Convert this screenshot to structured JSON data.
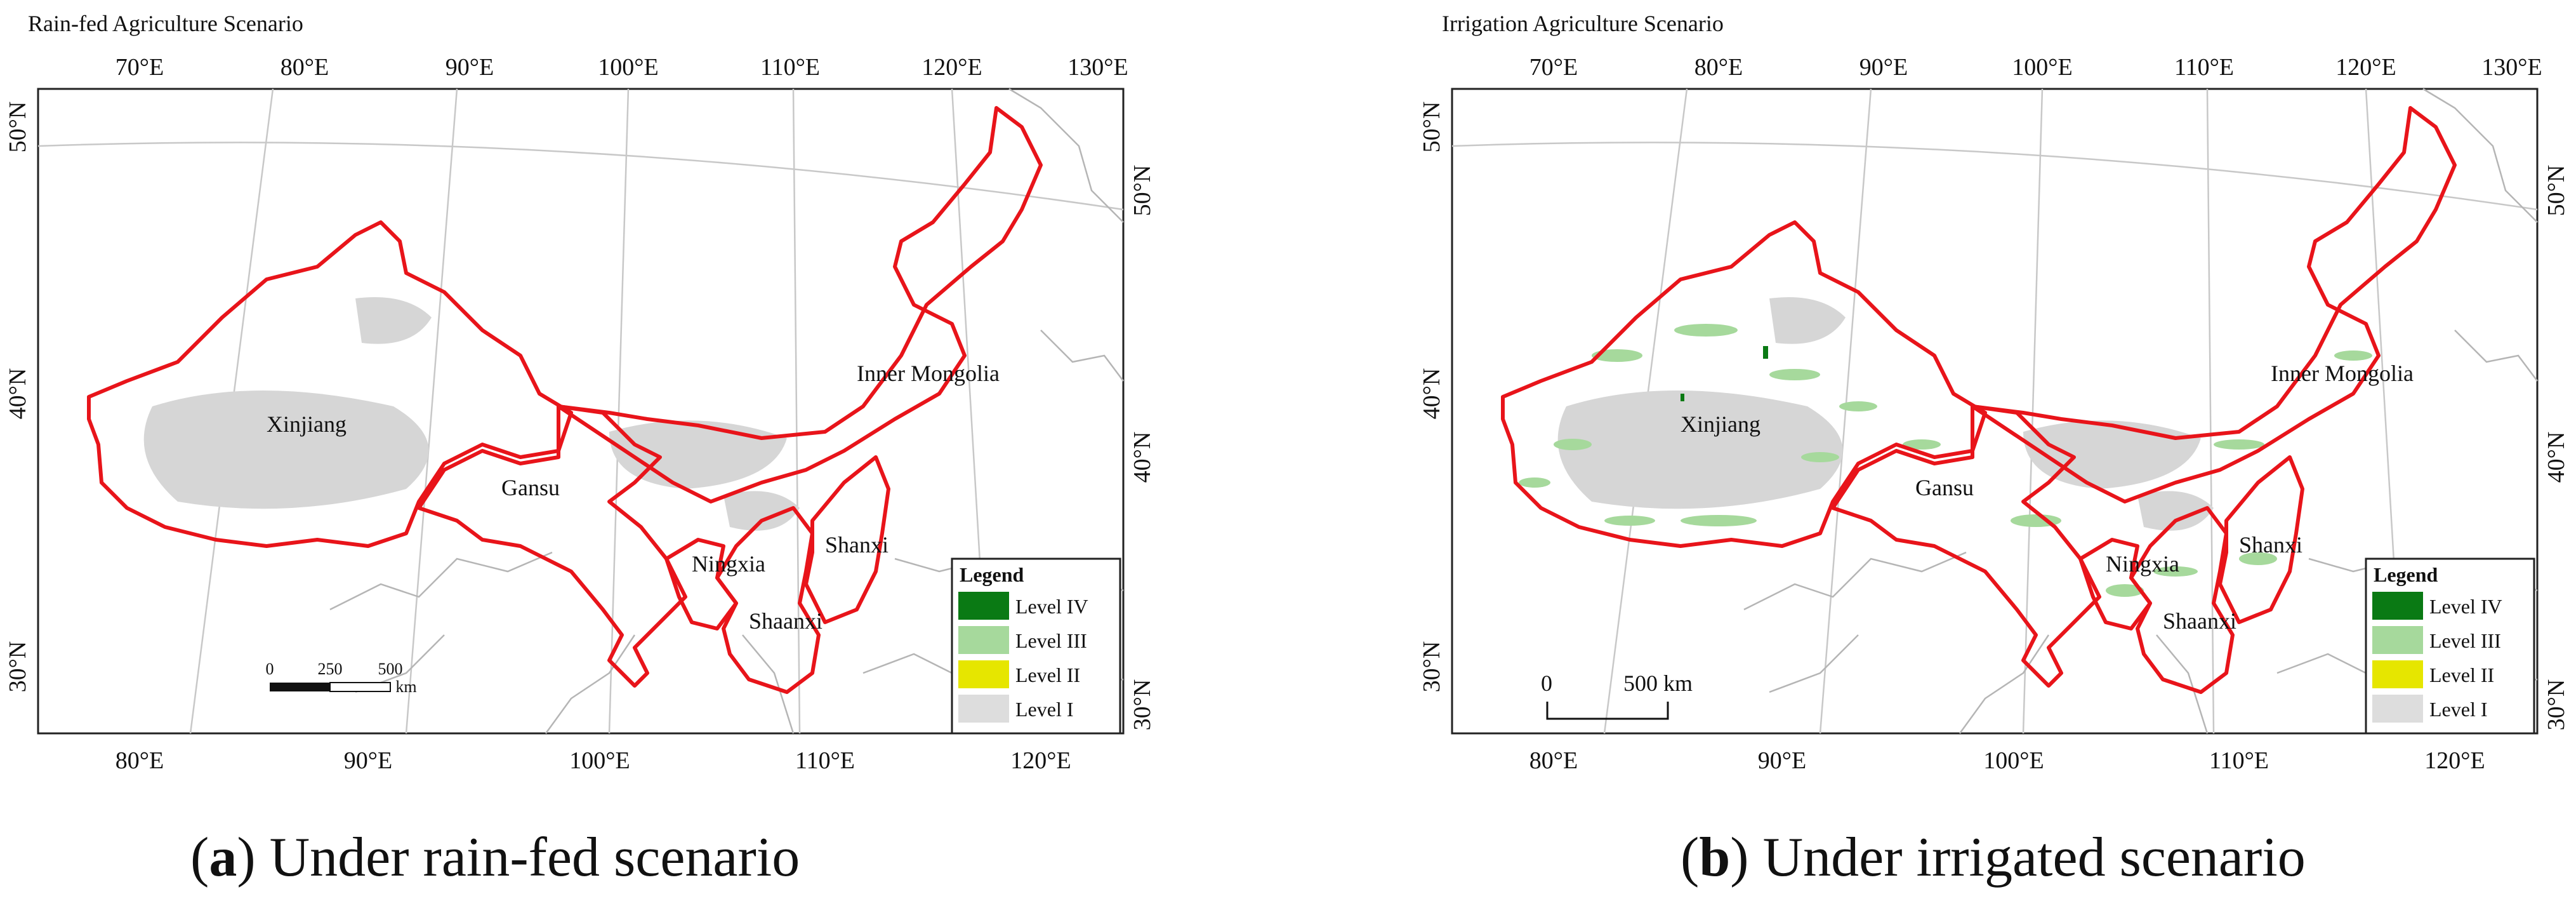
{
  "panels": [
    {
      "title": "Rain-fed Agriculture Scenario",
      "caption_letter": "a",
      "caption_text": "Under rain-fed scenario",
      "top_lon_labels": [
        "70°E",
        "80°E",
        "90°E",
        "100°E",
        "110°E",
        "120°E",
        "130°E"
      ],
      "bottom_lon_labels": [
        "80°E",
        "90°E",
        "100°E",
        "110°E",
        "120°E"
      ],
      "left_lat_labels": [
        "50°N",
        "40°N",
        "30°N"
      ],
      "right_lat_labels": [
        "50°N",
        "40°N",
        "30°N"
      ],
      "regions": [
        "Xinjiang",
        "Gansu",
        "Ningxia",
        "Shaanxi",
        "Shanxi",
        "Inner Mongolia"
      ],
      "legend": {
        "title": "Legend",
        "items": [
          {
            "label": "Level IV",
            "color": "#0a7a14"
          },
          {
            "label": "Level III",
            "color": "#a6d99c"
          },
          {
            "label": "Level II",
            "color": "#e6e600"
          },
          {
            "label": "Level I",
            "color": "#dddddd"
          }
        ]
      },
      "scale_bar": {
        "ticks": [
          "0",
          "250",
          "500"
        ],
        "unit": "km"
      }
    },
    {
      "title": "Irrigation Agriculture Scenario",
      "caption_letter": "b",
      "caption_text": "Under irrigated scenario",
      "top_lon_labels": [
        "70°E",
        "80°E",
        "90°E",
        "100°E",
        "110°E",
        "120°E",
        "130°E"
      ],
      "bottom_lon_labels": [
        "80°E",
        "90°E",
        "100°E",
        "110°E",
        "120°E"
      ],
      "left_lat_labels": [
        "50°N",
        "40°N",
        "30°N"
      ],
      "right_lat_labels": [
        "50°N",
        "40°N",
        "30°N"
      ],
      "regions": [
        "Xinjiang",
        "Gansu",
        "Ningxia",
        "Shaanxi",
        "Shanxi",
        "Inner Mongolia"
      ],
      "legend": {
        "title": "Legend",
        "items": [
          {
            "label": "Level IV",
            "color": "#0a7a14"
          },
          {
            "label": "Level III",
            "color": "#a6d99c"
          },
          {
            "label": "Level II",
            "color": "#e6e600"
          },
          {
            "label": "Level I",
            "color": "#dddddd"
          }
        ]
      },
      "scale_bar": {
        "ticks": [
          "0",
          "500 km"
        ]
      }
    }
  ],
  "colors": {
    "boundary": "#e8141a",
    "graticule": "#c8c8c8",
    "neighbor_lines": "#b5b5b5",
    "desert_fill": "#d6d6d6",
    "frame": "#222222"
  }
}
